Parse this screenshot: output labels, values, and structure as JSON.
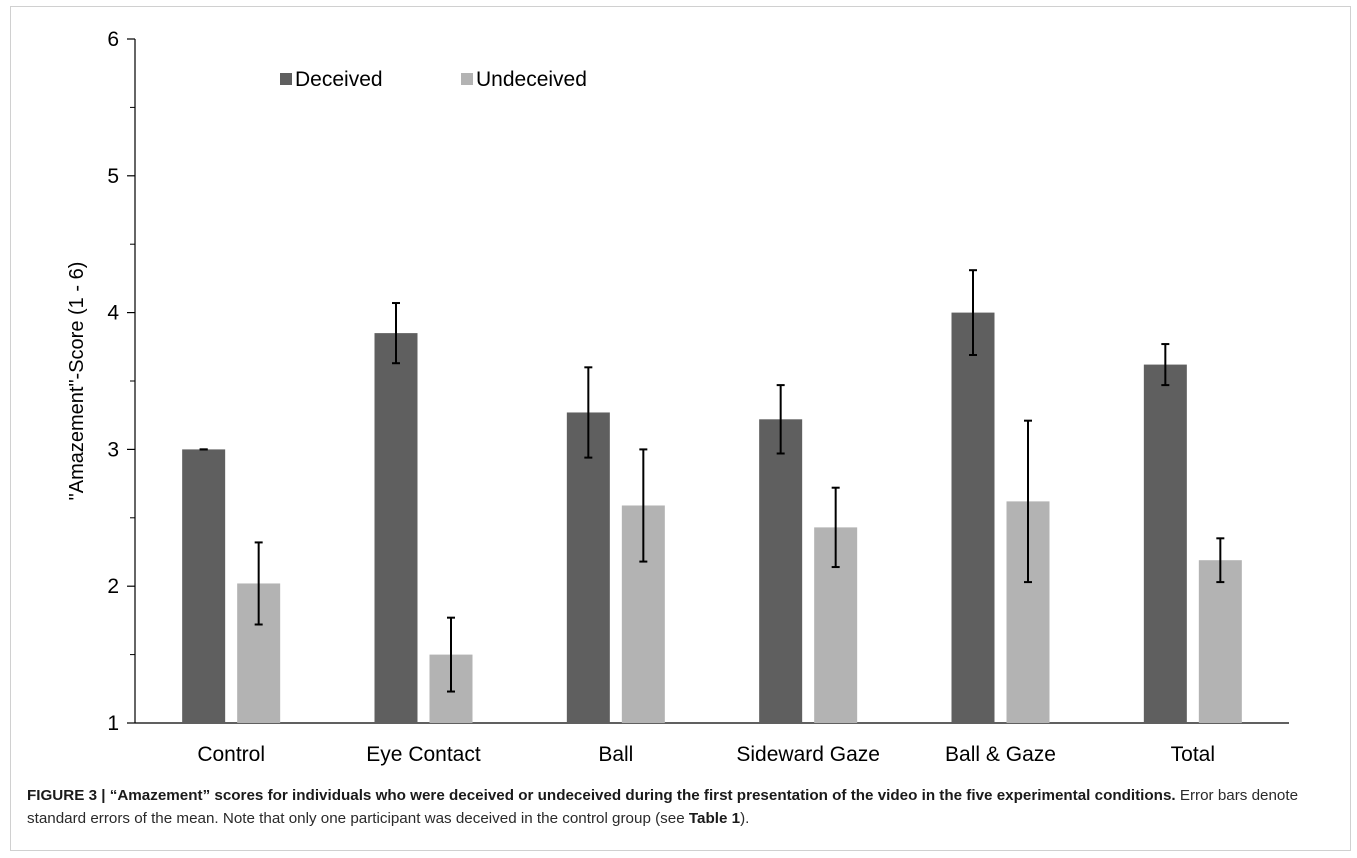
{
  "chart_data": {
    "type": "bar",
    "ylabel": "\"Amazement\"-Score (1 - 6)",
    "ylim": [
      1,
      6
    ],
    "yticks": [
      1,
      2,
      3,
      4,
      5,
      6
    ],
    "categories": [
      "Control",
      "Eye Contact",
      "Ball",
      "Sideward Gaze",
      "Ball & Gaze",
      "Total"
    ],
    "series": [
      {
        "name": "Deceived",
        "color": "#5f5f5f",
        "values": [
          3.0,
          3.85,
          3.27,
          3.22,
          4.0,
          3.62
        ],
        "errors": [
          0.0,
          0.22,
          0.33,
          0.25,
          0.31,
          0.15
        ]
      },
      {
        "name": "Undeceived",
        "color": "#b3b3b3",
        "values": [
          2.02,
          1.5,
          2.59,
          2.43,
          2.62,
          2.19
        ],
        "errors": [
          0.3,
          0.27,
          0.41,
          0.29,
          0.59,
          0.16
        ]
      }
    ],
    "legend_position": "top-left",
    "grid": false,
    "error_bars": "standard error"
  },
  "caption": {
    "bold": "FIGURE 3 | “Amazement” scores for individuals who were deceived or undeceived during the first presentation of the video in the five experimental conditions.",
    "text_1": " Error bars denote standard errors of the mean. Note that only one participant was deceived in the control group (see ",
    "table_ref": "Table 1",
    "text_2": ")."
  }
}
